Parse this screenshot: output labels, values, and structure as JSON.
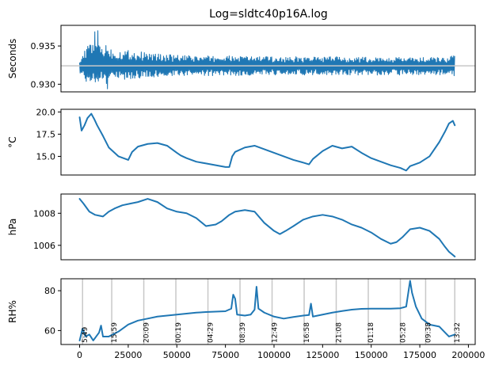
{
  "chart_data": {
    "title": "Log=sldtc40p16A.log",
    "type": "line",
    "series_color": "#1f77b4",
    "reference_color": "#c8c8c8",
    "panels": [
      {
        "id": "seconds",
        "ylabel": "Seconds",
        "ylim": [
          0.929,
          0.9377
        ],
        "yticks": [
          0.93,
          0.935
        ],
        "ytick_labels": [
          "0.930",
          "0.935"
        ],
        "reference_y": 0.9324,
        "envelope": {
          "x": [
            0,
            3000,
            6000,
            9000,
            11000,
            14000,
            17000,
            20000,
            25000,
            30000,
            40000,
            50000,
            60000,
            70000,
            80000,
            90000,
            100000,
            110000,
            120000,
            130000,
            140000,
            150000,
            160000,
            170000,
            180000,
            190000,
            193000
          ],
          "upper": [
            0.9335,
            0.9345,
            0.936,
            0.9375,
            0.935,
            0.9355,
            0.9345,
            0.9345,
            0.9345,
            0.9343,
            0.934,
            0.9338,
            0.9337,
            0.9337,
            0.9337,
            0.9337,
            0.9336,
            0.9336,
            0.9336,
            0.9336,
            0.9336,
            0.9335,
            0.9335,
            0.9335,
            0.9335,
            0.9335,
            0.934
          ],
          "lower": [
            0.9315,
            0.9305,
            0.9295,
            0.93,
            0.931,
            0.929,
            0.9303,
            0.9305,
            0.9306,
            0.9308,
            0.9309,
            0.931,
            0.9311,
            0.9311,
            0.9311,
            0.9312,
            0.9312,
            0.9312,
            0.9312,
            0.9312,
            0.9312,
            0.9312,
            0.9312,
            0.9312,
            0.9312,
            0.9312,
            0.9306
          ]
        }
      },
      {
        "id": "temperature",
        "ylabel": "°C",
        "ylim": [
          12.9,
          20.3
        ],
        "yticks": [
          15.0,
          17.5,
          20.0
        ],
        "ytick_labels": [
          "15.0",
          "17.5",
          "20.0"
        ],
        "series": {
          "x": [
            0,
            1000,
            2500,
            4000,
            6000,
            7500,
            9000,
            12000,
            15000,
            20000,
            25000,
            27000,
            30000,
            35000,
            40000,
            45000,
            50000,
            52000,
            55000,
            60000,
            65000,
            70000,
            75000,
            77000,
            78500,
            80000,
            85000,
            90000,
            95000,
            100000,
            105000,
            110000,
            115000,
            118000,
            120000,
            125000,
            130000,
            135000,
            140000,
            145000,
            150000,
            155000,
            160000,
            165000,
            168000,
            170000,
            175000,
            180000,
            185000,
            188000,
            190000,
            192000,
            193000
          ],
          "y": [
            19.4,
            17.9,
            18.5,
            19.3,
            19.8,
            19.2,
            18.5,
            17.3,
            16.0,
            15.0,
            14.6,
            15.5,
            16.1,
            16.4,
            16.5,
            16.2,
            15.4,
            15.1,
            14.8,
            14.4,
            14.2,
            14.0,
            13.8,
            13.8,
            15.0,
            15.5,
            16.0,
            16.2,
            15.8,
            15.4,
            15.0,
            14.6,
            14.3,
            14.1,
            14.7,
            15.6,
            16.2,
            15.9,
            16.1,
            15.4,
            14.8,
            14.4,
            14.0,
            13.7,
            13.4,
            13.9,
            14.3,
            15.0,
            16.6,
            17.8,
            18.7,
            19.0,
            18.5
          ]
        }
      },
      {
        "id": "pressure",
        "ylabel": "hPa",
        "ylim": [
          1005.1,
          1009.2
        ],
        "yticks": [
          1006,
          1008
        ],
        "ytick_labels": [
          "1006",
          "1008"
        ],
        "series": {
          "x": [
            0,
            2000,
            5000,
            8000,
            12000,
            15000,
            18000,
            22000,
            26000,
            30000,
            35000,
            40000,
            45000,
            50000,
            55000,
            60000,
            65000,
            70000,
            73000,
            77000,
            80000,
            85000,
            90000,
            95000,
            100000,
            103000,
            106000,
            110000,
            115000,
            120000,
            125000,
            130000,
            135000,
            140000,
            145000,
            150000,
            155000,
            160000,
            163000,
            166000,
            170000,
            175000,
            180000,
            185000,
            188000,
            190000,
            193000
          ],
          "y": [
            1008.9,
            1008.6,
            1008.1,
            1007.9,
            1007.8,
            1008.1,
            1008.3,
            1008.5,
            1008.6,
            1008.7,
            1008.9,
            1008.7,
            1008.3,
            1008.1,
            1008.0,
            1007.7,
            1007.2,
            1007.3,
            1007.5,
            1007.9,
            1008.1,
            1008.2,
            1008.1,
            1007.4,
            1006.9,
            1006.7,
            1006.9,
            1007.2,
            1007.6,
            1007.8,
            1007.9,
            1007.8,
            1007.6,
            1007.3,
            1007.1,
            1006.8,
            1006.4,
            1006.1,
            1006.2,
            1006.5,
            1007.0,
            1007.1,
            1006.9,
            1006.4,
            1005.9,
            1005.6,
            1005.3
          ]
        }
      },
      {
        "id": "humidity",
        "ylabel": "RH%",
        "ylim": [
          53.0,
          86.0
        ],
        "yticks": [
          60,
          80
        ],
        "ytick_labels": [
          "60",
          "80"
        ],
        "xlim": [
          -9600,
          203500
        ],
        "xticks": [
          0,
          25000,
          50000,
          75000,
          100000,
          125000,
          150000,
          175000,
          200000
        ],
        "xtick_labels": [
          "0",
          "25000",
          "50000",
          "75000",
          "100000",
          "125000",
          "150000",
          "175000",
          "200000"
        ],
        "time_marks": [
          {
            "x": 1500,
            "label": "5:49"
          },
          {
            "x": 16500,
            "label": "15:59"
          },
          {
            "x": 33000,
            "label": "20:09"
          },
          {
            "x": 49500,
            "label": "00:19"
          },
          {
            "x": 66000,
            "label": "04:29"
          },
          {
            "x": 82500,
            "label": "08:39"
          },
          {
            "x": 99000,
            "label": "12:49"
          },
          {
            "x": 115500,
            "label": "16:58"
          },
          {
            "x": 132000,
            "label": "21:08"
          },
          {
            "x": 148500,
            "label": "01:18"
          },
          {
            "x": 165000,
            "label": "05:28"
          },
          {
            "x": 178000,
            "label": "09:38"
          },
          {
            "x": 193000,
            "label": "13:32"
          }
        ],
        "series": {
          "x": [
            0,
            1500,
            3000,
            5000,
            7000,
            10000,
            11000,
            12000,
            15000,
            20000,
            25000,
            30000,
            35000,
            40000,
            45000,
            50000,
            55000,
            60000,
            65000,
            70000,
            75000,
            78000,
            79000,
            80000,
            81000,
            85000,
            88000,
            90000,
            91000,
            92000,
            95000,
            100000,
            105000,
            110000,
            115000,
            118000,
            119000,
            120000,
            125000,
            130000,
            135000,
            140000,
            145000,
            150000,
            155000,
            160000,
            165000,
            168000,
            170000,
            171000,
            173000,
            176000,
            180000,
            185000,
            188000,
            190000,
            193000
          ],
          "y": [
            55.0,
            61.0,
            57.0,
            58.0,
            55.0,
            59.0,
            62.5,
            57.0,
            57.0,
            59.5,
            63.0,
            65.0,
            66.0,
            67.0,
            67.5,
            68.0,
            68.5,
            69.0,
            69.3,
            69.5,
            69.7,
            71.0,
            78.0,
            76.0,
            68.0,
            67.5,
            68.0,
            70.5,
            82.0,
            71.0,
            69.0,
            67.0,
            66.0,
            66.8,
            67.5,
            67.8,
            73.5,
            67.0,
            68.0,
            69.0,
            69.8,
            70.5,
            70.9,
            71.0,
            71.0,
            71.0,
            71.2,
            72.0,
            85.0,
            79.0,
            72.0,
            66.0,
            63.0,
            62.0,
            59.0,
            57.0,
            58.0
          ]
        }
      }
    ]
  }
}
